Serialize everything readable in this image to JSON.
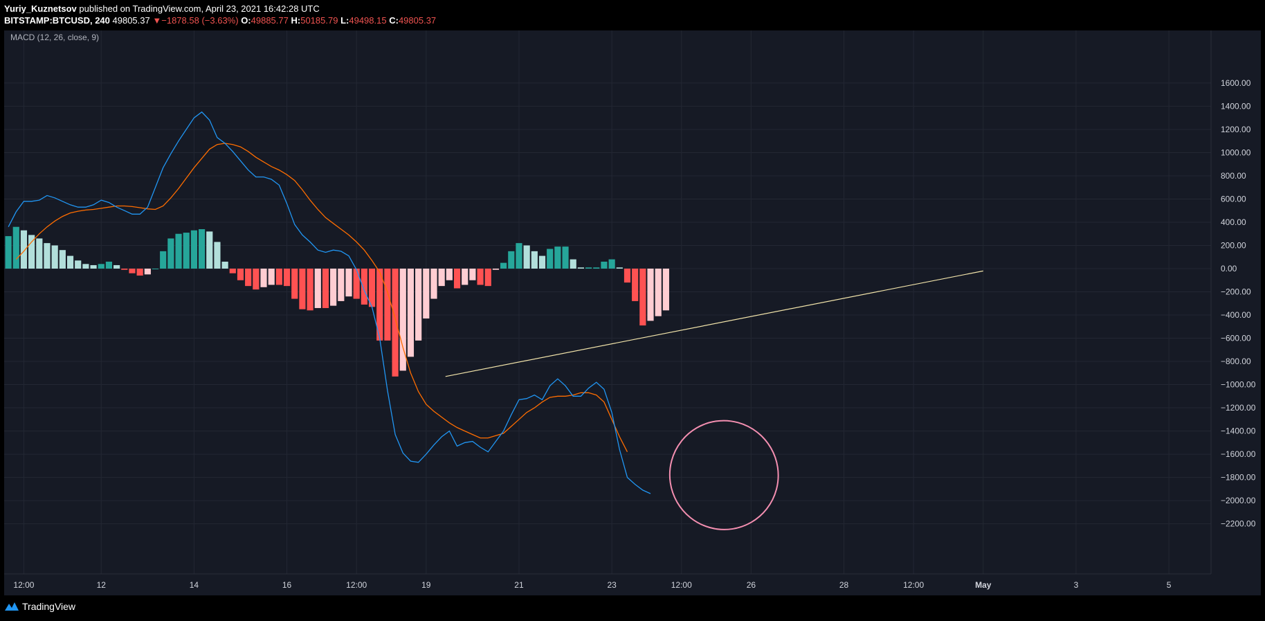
{
  "header": {
    "author": "Yuriy_Kuznetsov",
    "published_text": "published on TradingView.com, April 23, 2021 16:42:28 UTC",
    "symbol": "BITSTAMP:BTCUSD, 240",
    "price": "49805.37",
    "change": "−1878.58 (−3.63%)",
    "o_label": "O:",
    "o_value": "49885.77",
    "h_label": "H:",
    "h_value": "50185.79",
    "l_label": "L:",
    "l_value": "49498.15",
    "c_label": "C:",
    "c_value": "49805.37"
  },
  "footer": {
    "brand": "TradingView"
  },
  "colors": {
    "background": "#161a25",
    "macd_line": "#2196f3",
    "signal_line": "#ff6d00",
    "hist_pos_strong": "#26a69a",
    "hist_pos_weak": "#b2dfdb",
    "hist_neg_strong": "#ff5252",
    "hist_neg_weak": "#ffcdd2",
    "trendline": "#f3e5ab",
    "circle": "#f48fb1"
  },
  "chart_data": {
    "type": "line",
    "title": "MACD (12, 26, close, 9)",
    "ylim": [
      -2300,
      1600
    ],
    "y_ticks": [
      1600,
      1400,
      1200,
      1000,
      800,
      600,
      400,
      200,
      0,
      -200,
      -400,
      -600,
      -800,
      -1000,
      -1200,
      -1400,
      -1600,
      -1800,
      -2000,
      -2200
    ],
    "y_tick_labels": [
      "1600.00",
      "1400.00",
      "1200.00",
      "1000.00",
      "800.00",
      "600.00",
      "400.00",
      "200.00",
      "0.00",
      "−200.00",
      "−400.00",
      "−600.00",
      "−800.00",
      "−1000.00",
      "−1200.00",
      "−1400.00",
      "−1600.00",
      "−1800.00",
      "−2000.00",
      "−2200.00"
    ],
    "x_domain": [
      0,
      156
    ],
    "x_ticks": [
      {
        "x": 2,
        "label": "12:00",
        "bold": false
      },
      {
        "x": 12,
        "label": "12",
        "bold": false
      },
      {
        "x": 24,
        "label": "14",
        "bold": false
      },
      {
        "x": 36,
        "label": "16",
        "bold": false
      },
      {
        "x": 45,
        "label": "12:00",
        "bold": false
      },
      {
        "x": 54,
        "label": "19",
        "bold": false
      },
      {
        "x": 66,
        "label": "21",
        "bold": false
      },
      {
        "x": 78,
        "label": "23",
        "bold": false
      },
      {
        "x": 87,
        "label": "12:00",
        "bold": false
      },
      {
        "x": 96,
        "label": "26",
        "bold": false
      },
      {
        "x": 108,
        "label": "28",
        "bold": false
      },
      {
        "x": 117,
        "label": "12:00",
        "bold": false
      },
      {
        "x": 126,
        "label": "May",
        "bold": true
      },
      {
        "x": 138,
        "label": "3",
        "bold": false
      },
      {
        "x": 150,
        "label": "5",
        "bold": false
      }
    ],
    "series": [
      {
        "key": "macd",
        "values": [
          360,
          490,
          580,
          580,
          590,
          630,
          610,
          580,
          550,
          530,
          530,
          550,
          590,
          570,
          530,
          500,
          470,
          470,
          530,
          700,
          870,
          990,
          1100,
          1200,
          1300,
          1350,
          1280,
          1130,
          1080,
          1010,
          930,
          850,
          790,
          790,
          770,
          720,
          560,
          380,
          290,
          230,
          160,
          140,
          160,
          150,
          110,
          -10,
          -190,
          -330,
          -600,
          -1050,
          -1430,
          -1590,
          -1660,
          -1670,
          -1600,
          -1520,
          -1450,
          -1400,
          -1530,
          -1500,
          -1490,
          -1540,
          -1580,
          -1490,
          -1400,
          -1260,
          -1130,
          -1120,
          -1090,
          -1130,
          -1010,
          -950,
          -1010,
          -1100,
          -1100,
          -1030,
          -980,
          -1040,
          -1240,
          -1560,
          -1800,
          -1860,
          -1910,
          -1940
        ],
        "x_start": 0
      },
      {
        "key": "signal",
        "values": [
          80,
          150,
          230,
          300,
          360,
          410,
          450,
          480,
          495,
          505,
          510,
          520,
          530,
          540,
          540,
          535,
          525,
          515,
          510,
          540,
          610,
          690,
          780,
          870,
          950,
          1030,
          1070,
          1080,
          1070,
          1050,
          1010,
          960,
          920,
          880,
          850,
          810,
          760,
          680,
          590,
          510,
          440,
          390,
          340,
          290,
          230,
          160,
          70,
          -30,
          -200,
          -430,
          -680,
          -900,
          -1060,
          -1170,
          -1230,
          -1280,
          -1330,
          -1370,
          -1400,
          -1430,
          -1460,
          -1460,
          -1440,
          -1420,
          -1360,
          -1300,
          -1240,
          -1200,
          -1150,
          -1110,
          -1100,
          -1100,
          -1090,
          -1070,
          -1070,
          -1090,
          -1150,
          -1300,
          -1450,
          -1580
        ],
        "x_start": 1
      },
      {
        "key": "histogram",
        "values": [
          280,
          360,
          330,
          290,
          260,
          220,
          200,
          160,
          110,
          70,
          40,
          30,
          40,
          60,
          30,
          -10,
          -40,
          -60,
          -50,
          0,
          150,
          260,
          300,
          310,
          330,
          340,
          320,
          230,
          60,
          -40,
          -100,
          -150,
          -180,
          -160,
          -140,
          -140,
          -150,
          -260,
          -350,
          -360,
          -340,
          -340,
          -320,
          -280,
          -240,
          -260,
          -310,
          -330,
          -620,
          -620,
          -930,
          -880,
          -760,
          -620,
          -430,
          -260,
          -150,
          -100,
          -170,
          -140,
          -100,
          -140,
          -150,
          -10,
          50,
          150,
          220,
          200,
          150,
          110,
          170,
          190,
          190,
          80,
          10,
          10,
          10,
          60,
          80,
          10,
          -120,
          -280,
          -490,
          -450,
          -410,
          -360
        ],
        "x_start": 0
      }
    ],
    "trendline": {
      "from": [
        56.5,
        -930
      ],
      "to": [
        126,
        -20
      ]
    },
    "circle": {
      "cx": 92.5,
      "cy": -1780,
      "rx": 7,
      "ry": 470,
      "rotate": -30
    }
  }
}
